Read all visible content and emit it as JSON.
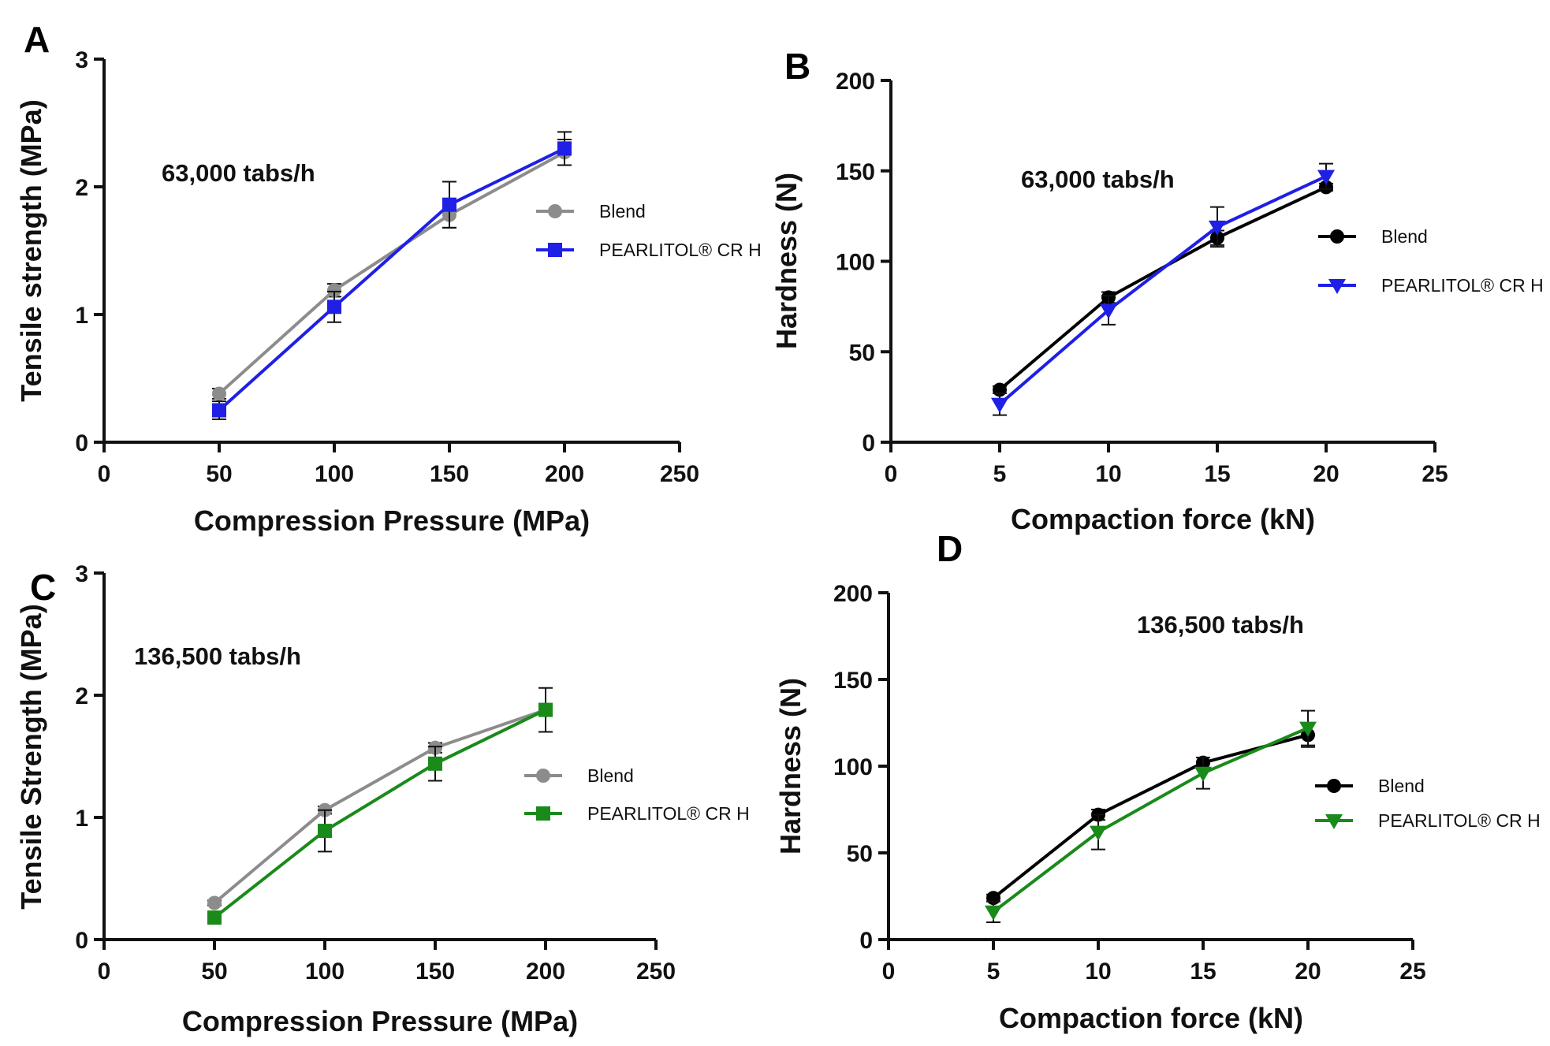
{
  "chart_data": [
    {
      "type": "line",
      "panel_label": "A",
      "annotation": "63,000 tabs/h",
      "xlabel": "Compression Pressure (MPa)",
      "ylabel": "Tensile strength (MPa)",
      "xlim": [
        0,
        250
      ],
      "ylim": [
        0,
        3
      ],
      "xticks": [
        0,
        50,
        100,
        150,
        200,
        250
      ],
      "yticks": [
        0,
        1,
        2,
        3
      ],
      "legend_position": "center-right",
      "series": [
        {
          "name": "Blend",
          "color": "#8c8c8c",
          "marker": "circle",
          "x": [
            50,
            100,
            150,
            200
          ],
          "values": [
            0.38,
            1.19,
            1.78,
            2.27
          ],
          "errors": [
            0.04,
            0.05,
            0.1,
            0.1
          ]
        },
        {
          "name": "PEARLITOL® CR H",
          "color": "#1f1fe6",
          "marker": "square",
          "x": [
            50,
            100,
            150,
            200
          ],
          "values": [
            0.25,
            1.06,
            1.86,
            2.3
          ],
          "errors": [
            0.07,
            0.12,
            0.18,
            0.13
          ]
        }
      ]
    },
    {
      "type": "line",
      "panel_label": "B",
      "annotation": "63,000 tabs/h",
      "xlabel": "Compaction force (kN)",
      "ylabel": "Hardness (N)",
      "xlim": [
        0,
        25
      ],
      "ylim": [
        0,
        200
      ],
      "xticks": [
        0,
        5,
        10,
        15,
        20,
        25
      ],
      "yticks": [
        0,
        50,
        100,
        150,
        200
      ],
      "legend_position": "center-right",
      "series": [
        {
          "name": "Blend",
          "color": "#000000",
          "marker": "circle",
          "x": [
            5,
            10,
            15,
            20
          ],
          "values": [
            29,
            80,
            113,
            141
          ],
          "errors": [
            2,
            3,
            4,
            2
          ]
        },
        {
          "name": "PEARLITOL® CR H",
          "color": "#1f1fe6",
          "marker": "triangle-down",
          "x": [
            5,
            10,
            15,
            20
          ],
          "values": [
            21,
            73,
            119,
            147
          ],
          "errors": [
            6,
            8,
            11,
            7
          ]
        }
      ]
    },
    {
      "type": "line",
      "panel_label": "C",
      "annotation": "136,500 tabs/h",
      "xlabel": "Compression Pressure (MPa)",
      "ylabel": "Tensile Strength (MPa)",
      "xlim": [
        0,
        250
      ],
      "ylim": [
        0,
        3
      ],
      "xticks": [
        0,
        50,
        100,
        150,
        200,
        250
      ],
      "yticks": [
        0,
        1,
        2,
        3
      ],
      "legend_position": "center-right",
      "series": [
        {
          "name": "Blend",
          "color": "#8c8c8c",
          "marker": "circle",
          "x": [
            50,
            100,
            150,
            200
          ],
          "values": [
            0.3,
            1.06,
            1.57,
            1.88
          ],
          "errors": [
            0.02,
            0.03,
            0.04,
            0.05
          ]
        },
        {
          "name": "PEARLITOL® CR H",
          "color": "#1a8a1a",
          "marker": "square",
          "x": [
            50,
            100,
            150,
            200
          ],
          "values": [
            0.18,
            0.89,
            1.44,
            1.88
          ],
          "errors": [
            0.03,
            0.17,
            0.14,
            0.18
          ]
        }
      ]
    },
    {
      "type": "line",
      "panel_label": "D",
      "annotation": "136,500 tabs/h",
      "xlabel": "Compaction force (kN)",
      "ylabel": "Hardness (N)",
      "xlim": [
        0,
        25
      ],
      "ylim": [
        0,
        200
      ],
      "xticks": [
        0,
        5,
        10,
        15,
        20,
        25
      ],
      "yticks": [
        0,
        50,
        100,
        150,
        200
      ],
      "legend_position": "center-right",
      "series": [
        {
          "name": "Blend",
          "color": "#000000",
          "marker": "circle",
          "x": [
            5,
            10,
            15,
            20
          ],
          "values": [
            24,
            72,
            102,
            118
          ],
          "errors": [
            2,
            3,
            3,
            7
          ]
        },
        {
          "name": "PEARLITOL® CR H",
          "color": "#1a8a1a",
          "marker": "triangle-down",
          "x": [
            5,
            10,
            15,
            20
          ],
          "values": [
            16,
            62,
            96,
            122
          ],
          "errors": [
            6,
            10,
            9,
            10
          ]
        }
      ]
    }
  ]
}
